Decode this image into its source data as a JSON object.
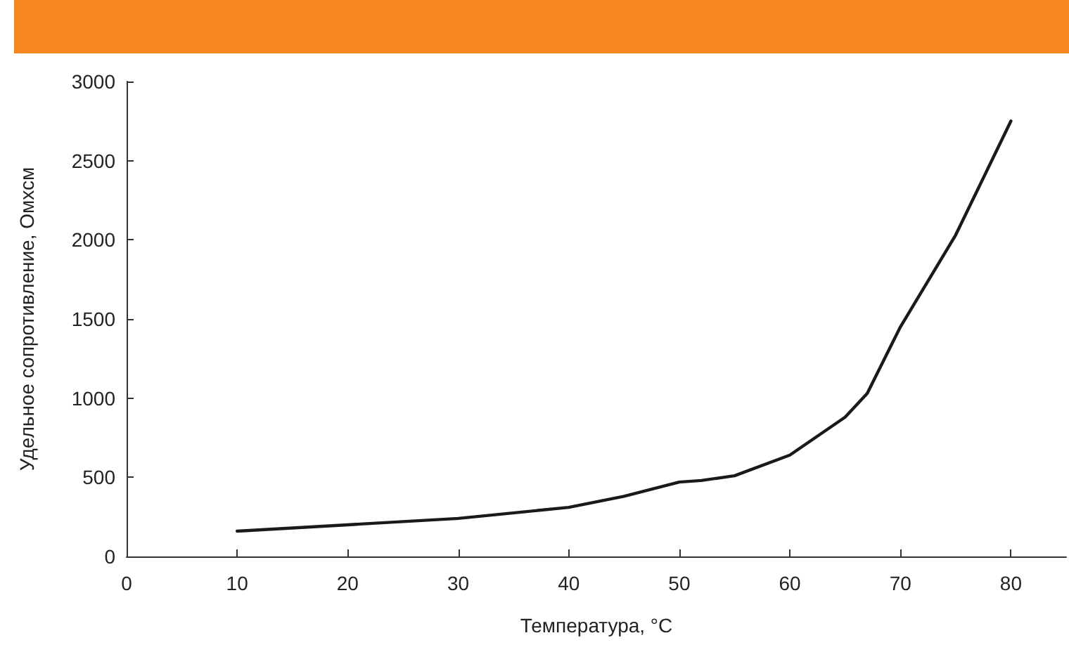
{
  "chart_data": {
    "type": "line",
    "xlabel": "Температура, °C",
    "ylabel": "Удельное сопротивление, Омхсм",
    "x": [
      10,
      20,
      30,
      40,
      45,
      50,
      52,
      55,
      60,
      65,
      67,
      70,
      75,
      80
    ],
    "series": [
      {
        "color": "#1a1a1a",
        "values": [
          160,
          200,
          240,
          310,
          380,
          470,
          480,
          510,
          640,
          880,
          1030,
          1450,
          2030,
          2750
        ]
      }
    ],
    "xlim": [
      0,
      85
    ],
    "xticks": [
      0,
      10,
      20,
      30,
      40,
      50,
      60,
      70,
      80
    ],
    "ylim": [
      0,
      3000
    ],
    "yticks": [
      0,
      500,
      1000,
      1500,
      2000,
      2500,
      3000
    ],
    "grid": false,
    "marker": "none",
    "line_style": "solid"
  }
}
